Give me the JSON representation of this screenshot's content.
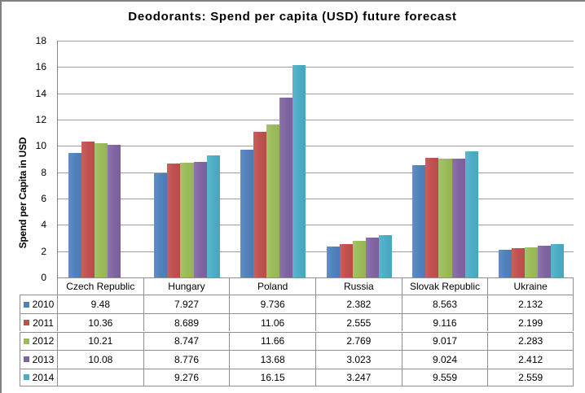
{
  "chart_data": {
    "type": "bar",
    "title": "Deodorants: Spend per capita (USD) future forecast",
    "ylabel": "Spend per Capita in USD",
    "xlabel": "",
    "ylim": [
      0,
      18
    ],
    "ytick_step": 2,
    "ytick_labels": [
      "0",
      "2",
      "4",
      "6",
      "8",
      "10",
      "12",
      "14",
      "16",
      "18"
    ],
    "grid": true,
    "legend_position": "data-table-left",
    "categories": [
      "Czech Republic",
      "Hungary",
      "Poland",
      "Russia",
      "Slovak Republic",
      "Ukraine"
    ],
    "series": [
      {
        "name": "2010",
        "color": "#4F81BD",
        "values": [
          9.48,
          7.927,
          9.736,
          2.382,
          8.563,
          2.132
        ]
      },
      {
        "name": "2011",
        "color": "#C0504D",
        "values": [
          10.36,
          8.689,
          11.06,
          2.555,
          9.116,
          2.199
        ]
      },
      {
        "name": "2012",
        "color": "#9BBB59",
        "values": [
          10.21,
          8.747,
          11.66,
          2.769,
          9.017,
          2.283
        ]
      },
      {
        "name": "2013",
        "color": "#8064A2",
        "values": [
          10.08,
          8.776,
          13.68,
          3.023,
          9.024,
          2.412
        ]
      },
      {
        "name": "2014",
        "color": "#4BACC6",
        "values": [
          null,
          9.276,
          16.15,
          3.247,
          9.559,
          2.559
        ]
      }
    ]
  },
  "colors": {
    "frame_border": "#808080",
    "axis_line": "#868686",
    "grid_line": "#9c9c9c",
    "table_border": "#8e8e8e",
    "text": "#000000",
    "background": "#ffffff"
  }
}
